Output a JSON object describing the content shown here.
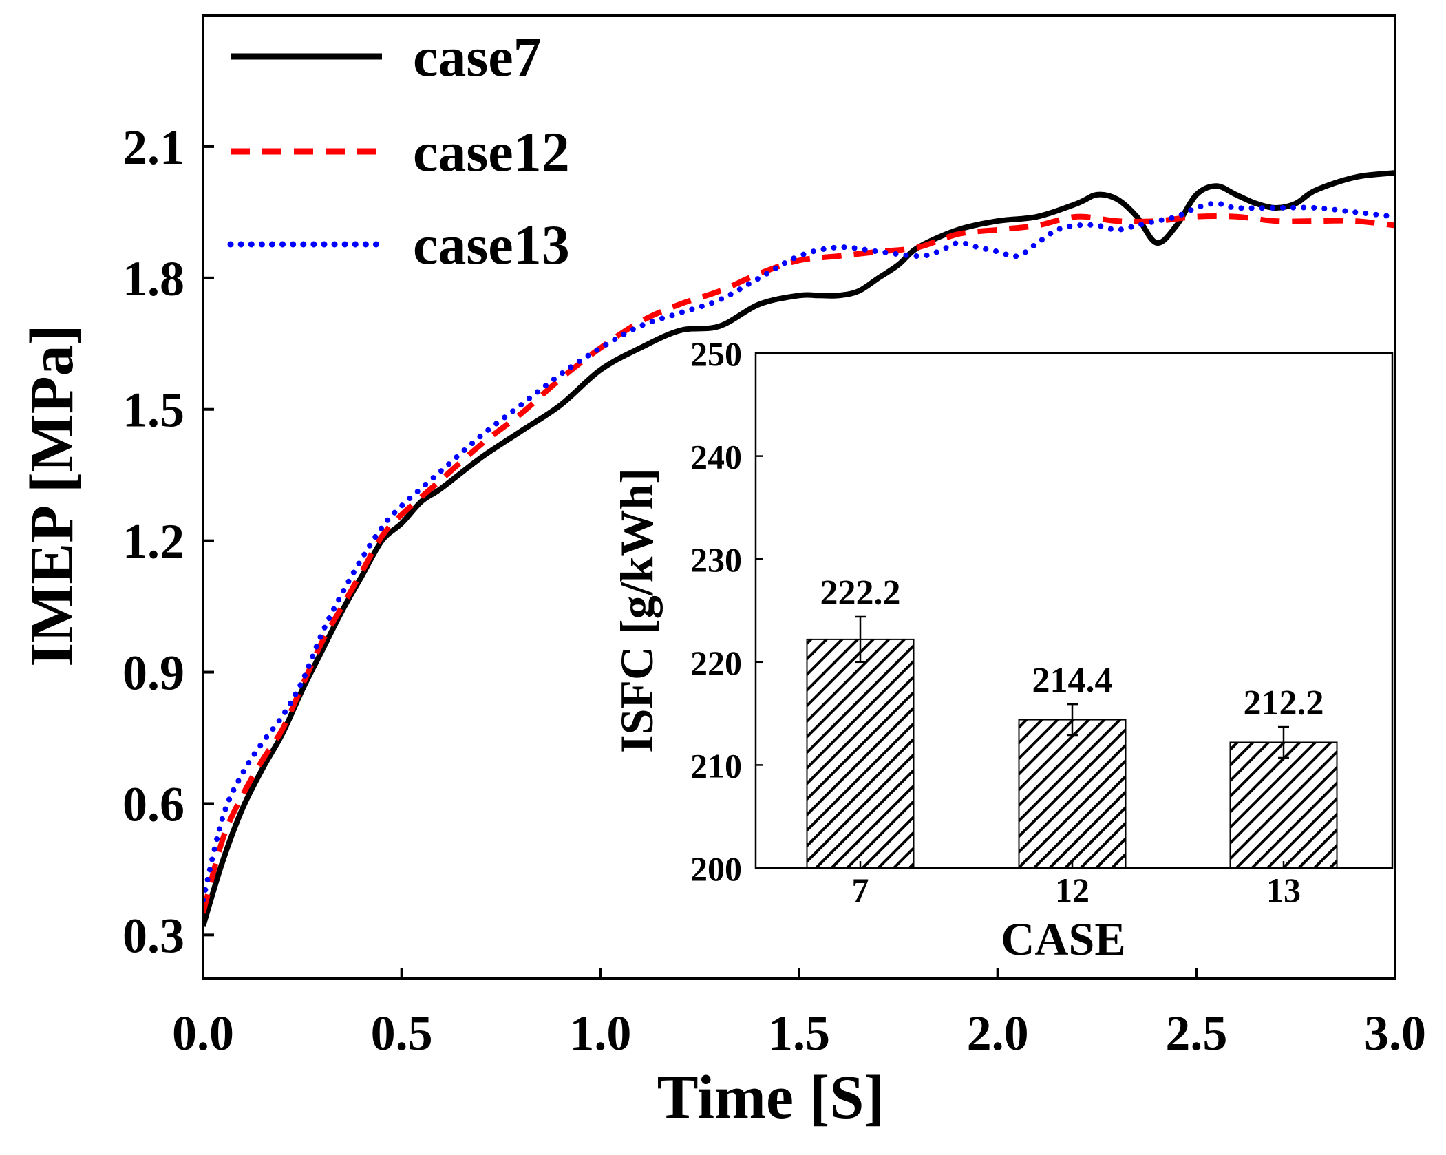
{
  "chart_data": [
    {
      "type": "line",
      "xlabel": "Time [S]",
      "ylabel": "IMEP [MPa]",
      "xlim": [
        0.0,
        3.0
      ],
      "ylim": [
        0.2,
        2.4
      ],
      "xticks": [
        "0.0",
        "0.5",
        "1.0",
        "1.5",
        "2.0",
        "2.5",
        "3.0"
      ],
      "yticks": [
        "0.3",
        "0.6",
        "0.9",
        "1.2",
        "1.5",
        "1.8",
        "2.1"
      ],
      "legend_position": "top-left",
      "series": [
        {
          "name": "case7",
          "color": "#000000",
          "style": "solid",
          "x": [
            0.0,
            0.05,
            0.1,
            0.15,
            0.2,
            0.25,
            0.3,
            0.35,
            0.4,
            0.45,
            0.5,
            0.55,
            0.6,
            0.7,
            0.8,
            0.9,
            1.0,
            1.1,
            1.2,
            1.3,
            1.4,
            1.5,
            1.55,
            1.6,
            1.65,
            1.7,
            1.75,
            1.8,
            1.9,
            2.0,
            2.1,
            2.2,
            2.25,
            2.3,
            2.35,
            2.4,
            2.45,
            2.5,
            2.55,
            2.6,
            2.65,
            2.7,
            2.75,
            2.8,
            2.9,
            3.0
          ],
          "y": [
            0.32,
            0.47,
            0.59,
            0.68,
            0.76,
            0.86,
            0.95,
            1.04,
            1.12,
            1.2,
            1.24,
            1.29,
            1.32,
            1.39,
            1.45,
            1.51,
            1.59,
            1.64,
            1.68,
            1.69,
            1.74,
            1.76,
            1.76,
            1.76,
            1.77,
            1.8,
            1.83,
            1.87,
            1.91,
            1.93,
            1.94,
            1.97,
            1.99,
            1.98,
            1.94,
            1.88,
            1.92,
            1.99,
            2.01,
            1.99,
            1.97,
            1.96,
            1.97,
            2.0,
            2.03,
            2.04
          ]
        },
        {
          "name": "case12",
          "color": "#ff0000",
          "style": "dashed",
          "x": [
            0.0,
            0.05,
            0.1,
            0.15,
            0.2,
            0.25,
            0.3,
            0.35,
            0.4,
            0.45,
            0.5,
            0.6,
            0.7,
            0.8,
            0.9,
            1.0,
            1.1,
            1.2,
            1.3,
            1.4,
            1.5,
            1.6,
            1.7,
            1.8,
            1.9,
            2.0,
            2.1,
            2.2,
            2.3,
            2.4,
            2.5,
            2.6,
            2.7,
            2.8,
            2.9,
            3.0
          ],
          "y": [
            0.35,
            0.52,
            0.62,
            0.7,
            0.77,
            0.87,
            0.97,
            1.05,
            1.13,
            1.21,
            1.26,
            1.34,
            1.42,
            1.49,
            1.57,
            1.64,
            1.7,
            1.74,
            1.77,
            1.81,
            1.84,
            1.85,
            1.86,
            1.87,
            1.9,
            1.91,
            1.92,
            1.94,
            1.93,
            1.93,
            1.94,
            1.94,
            1.93,
            1.93,
            1.93,
            1.92
          ]
        },
        {
          "name": "case13",
          "color": "#0000ff",
          "style": "dotted",
          "x": [
            0.0,
            0.05,
            0.1,
            0.15,
            0.2,
            0.25,
            0.3,
            0.35,
            0.4,
            0.45,
            0.5,
            0.6,
            0.7,
            0.8,
            0.9,
            1.0,
            1.1,
            1.2,
            1.3,
            1.4,
            1.5,
            1.6,
            1.7,
            1.8,
            1.85,
            1.9,
            1.95,
            2.0,
            2.05,
            2.1,
            2.15,
            2.2,
            2.25,
            2.3,
            2.35,
            2.4,
            2.45,
            2.5,
            2.55,
            2.6,
            2.7,
            2.8,
            2.9,
            3.0
          ],
          "y": [
            0.38,
            0.57,
            0.67,
            0.74,
            0.8,
            0.88,
            0.99,
            1.08,
            1.16,
            1.23,
            1.28,
            1.36,
            1.44,
            1.51,
            1.58,
            1.64,
            1.69,
            1.72,
            1.75,
            1.8,
            1.85,
            1.87,
            1.86,
            1.85,
            1.86,
            1.88,
            1.87,
            1.86,
            1.85,
            1.88,
            1.91,
            1.92,
            1.92,
            1.91,
            1.92,
            1.93,
            1.94,
            1.96,
            1.97,
            1.96,
            1.96,
            1.96,
            1.95,
            1.94
          ]
        }
      ]
    },
    {
      "type": "bar",
      "xlabel": "CASE",
      "ylabel": "ISFC [g/kWh]",
      "ylim": [
        200,
        250
      ],
      "yticks": [
        "200",
        "210",
        "220",
        "230",
        "240",
        "250"
      ],
      "categories": [
        "7",
        "12",
        "13"
      ],
      "values": [
        222.2,
        214.4,
        212.2
      ],
      "value_labels": [
        "222.2",
        "214.4",
        "212.2"
      ],
      "errors": [
        2.2,
        1.5,
        1.5
      ],
      "bar_pattern": "diagonal-hatch",
      "bar_color": "#000000"
    }
  ]
}
